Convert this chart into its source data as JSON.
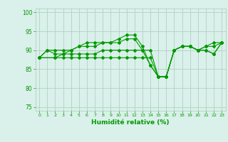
{
  "title": "",
  "xlabel": "Humidité relative (%)",
  "ylabel": "",
  "xlim": [
    -0.5,
    23.5
  ],
  "ylim": [
    74,
    101
  ],
  "yticks": [
    75,
    80,
    85,
    90,
    95,
    100
  ],
  "xticks": [
    0,
    1,
    2,
    3,
    4,
    5,
    6,
    7,
    8,
    9,
    10,
    11,
    12,
    13,
    14,
    15,
    16,
    17,
    18,
    19,
    20,
    21,
    22,
    23
  ],
  "bg_color": "#daf0ea",
  "grid_color": "#aaccbb",
  "line_color": "#009900",
  "series": [
    [
      88,
      90,
      90,
      90,
      90,
      91,
      91,
      91,
      92,
      92,
      93,
      94,
      94,
      91,
      86,
      83,
      83,
      90,
      91,
      91,
      90,
      91,
      92,
      92
    ],
    [
      88,
      90,
      89,
      89,
      90,
      91,
      92,
      92,
      92,
      92,
      92,
      93,
      93,
      90,
      86,
      83,
      83,
      90,
      91,
      91,
      90,
      91,
      91,
      92
    ],
    [
      88,
      null,
      88,
      89,
      89,
      89,
      89,
      89,
      90,
      90,
      90,
      90,
      90,
      90,
      90,
      83,
      83,
      90,
      91,
      91,
      90,
      90,
      89,
      92
    ],
    [
      88,
      null,
      88,
      88,
      88,
      88,
      88,
      88,
      88,
      88,
      88,
      88,
      88,
      88,
      88,
      83,
      83,
      90,
      91,
      91,
      90,
      90,
      89,
      92
    ]
  ]
}
